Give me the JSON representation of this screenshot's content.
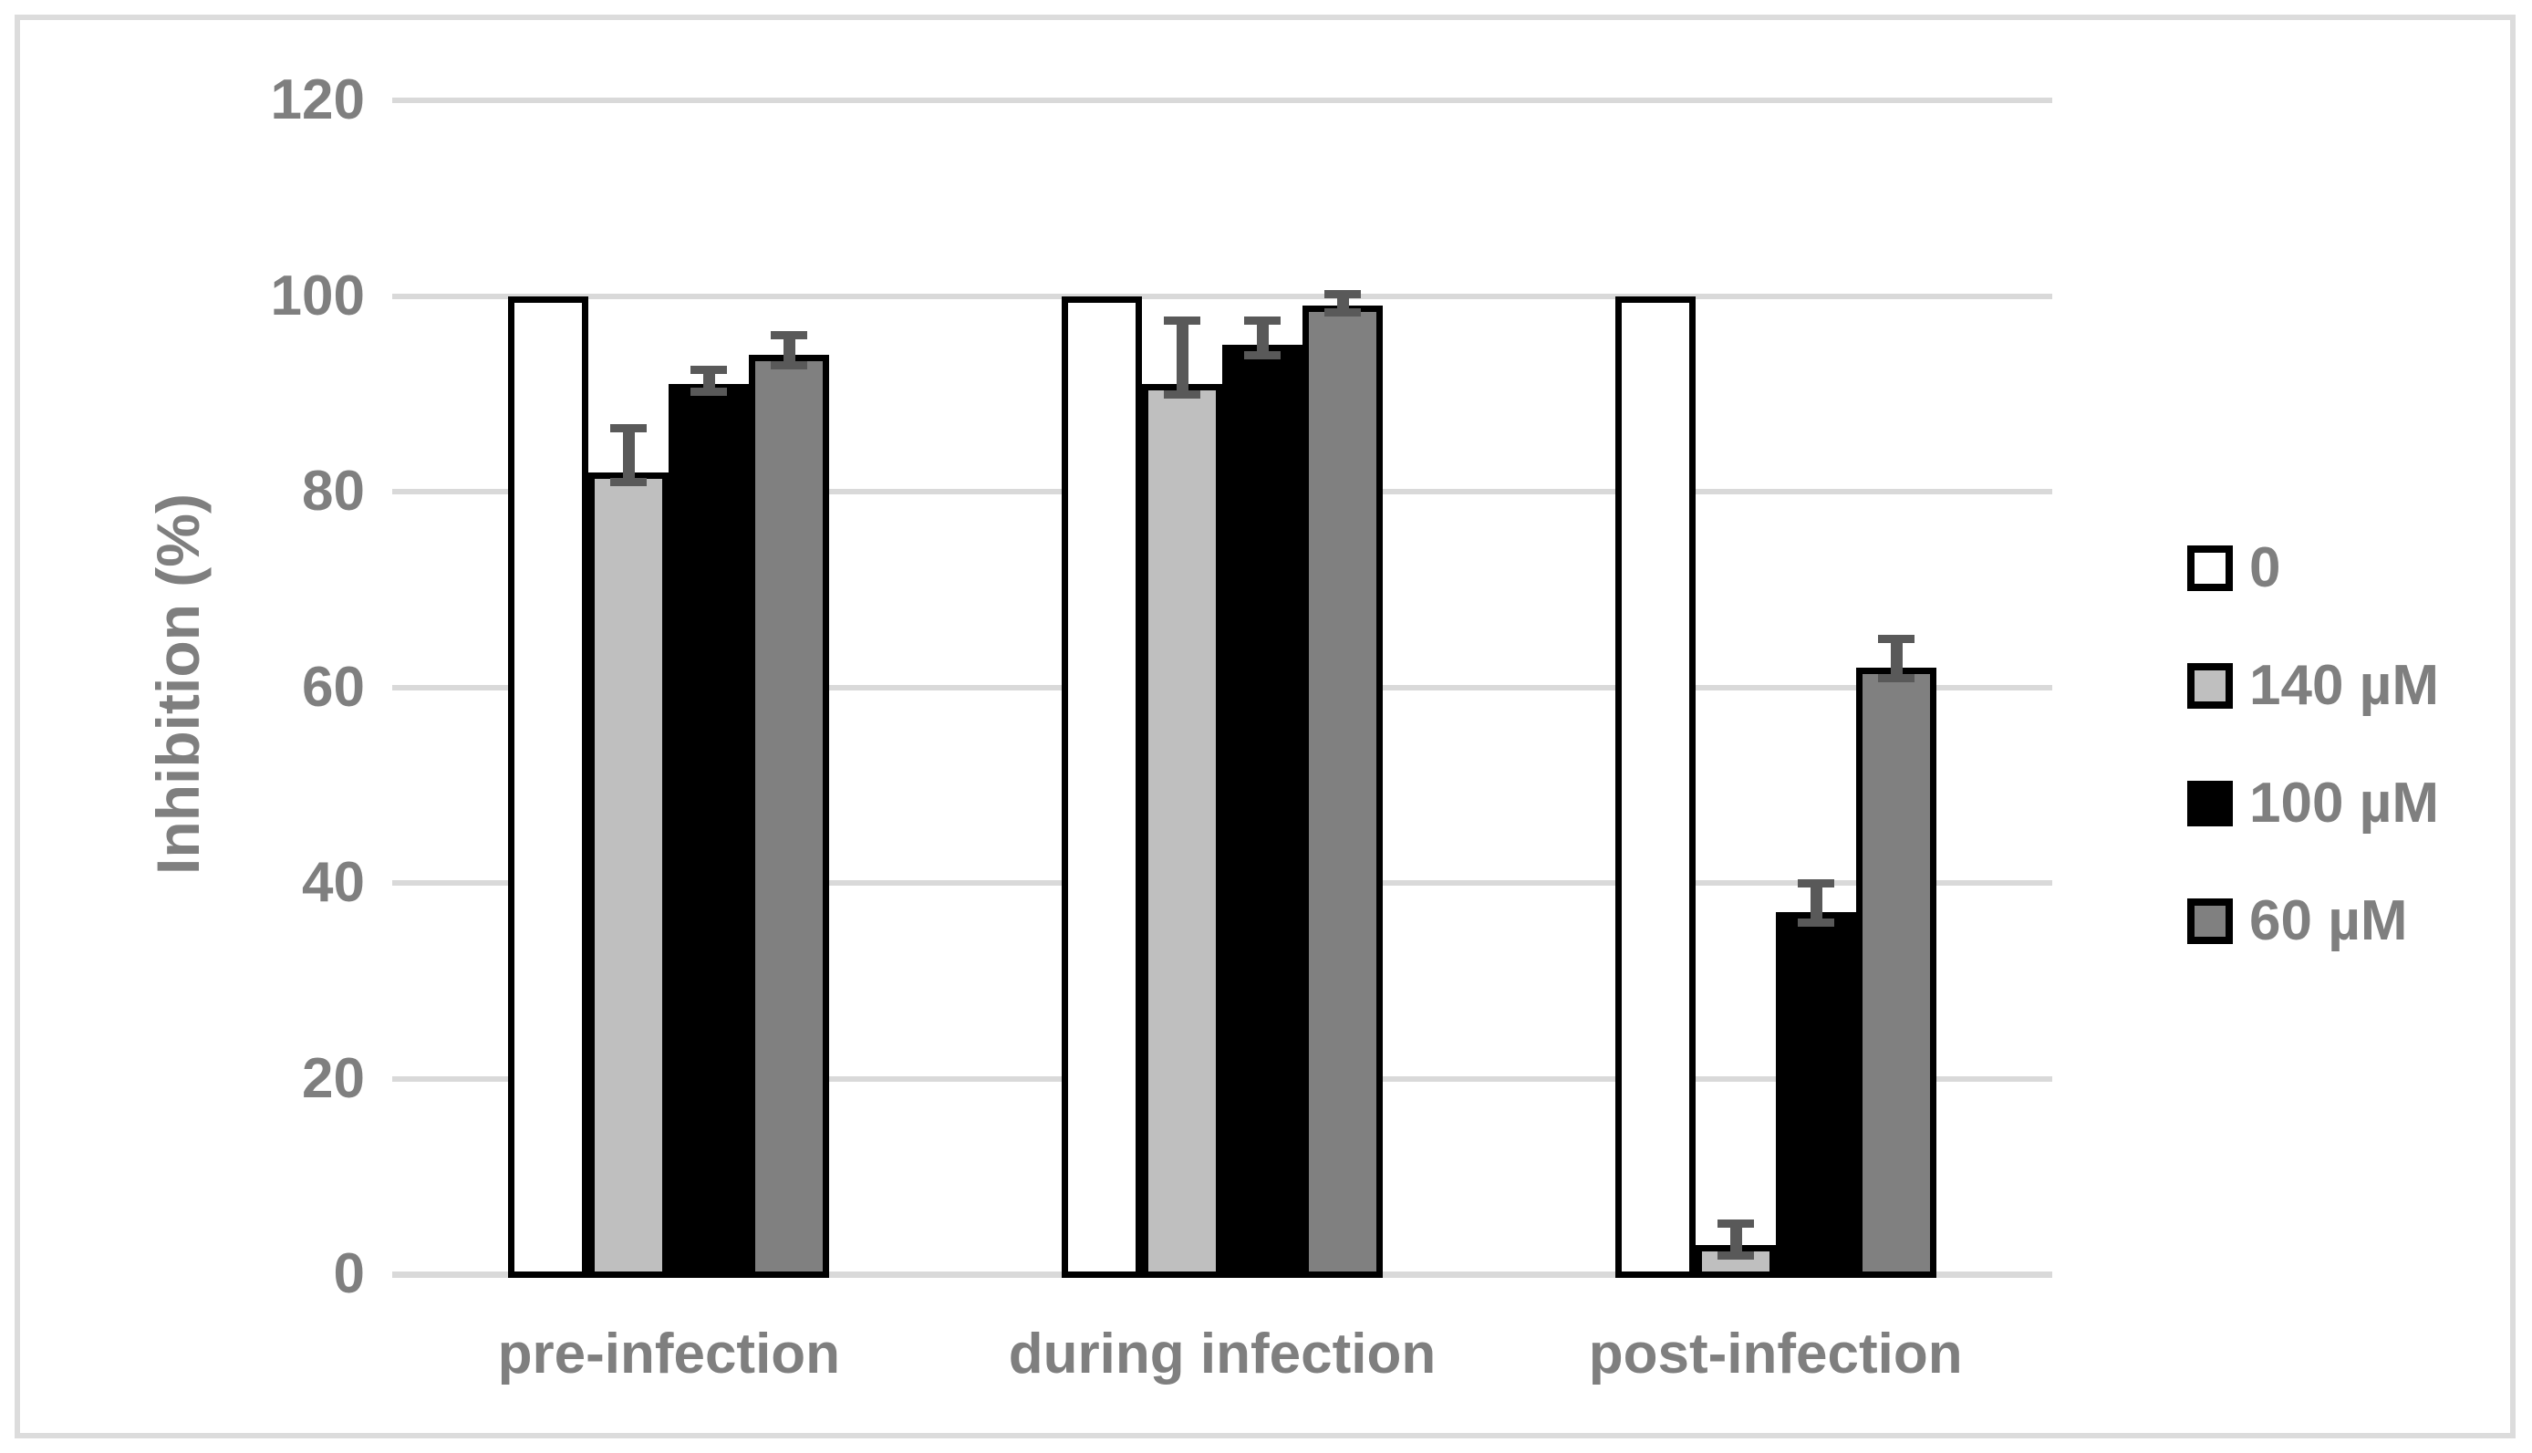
{
  "figure": {
    "background": "#ffffff",
    "border_color": "#dcdcdc"
  },
  "chart_data": {
    "type": "bar",
    "title": "",
    "xlabel": "",
    "ylabel": "Inhibition (%)",
    "categories": [
      "pre-infection",
      "during infection",
      "post-infection"
    ],
    "series": [
      {
        "name": "0",
        "color": "#ffffff",
        "values": [
          100,
          100,
          100
        ],
        "errors": [
          null,
          null,
          null
        ]
      },
      {
        "name": "140 µM",
        "color": "#bfbfbf",
        "values": [
          82,
          91,
          3
        ],
        "errors": [
          4.5,
          6.5,
          2.2
        ]
      },
      {
        "name": "100 µM",
        "color": "#000000",
        "values": [
          91,
          95,
          37
        ],
        "errors": [
          1.5,
          2.5,
          3
        ]
      },
      {
        "name": "60 µM",
        "color": "#808080",
        "values": [
          94,
          99,
          62
        ],
        "errors": [
          2,
          1.2,
          3
        ]
      }
    ],
    "ylim": [
      0,
      120
    ],
    "yticks": [
      0,
      20,
      40,
      60,
      80,
      100,
      120
    ],
    "grid": true,
    "legend_position": "right",
    "style": {
      "text_color": "#7f7f7f",
      "gridline_color": "#d9d9d9",
      "error_bar_color": "#595959",
      "bar_border_color": "#000000"
    }
  }
}
